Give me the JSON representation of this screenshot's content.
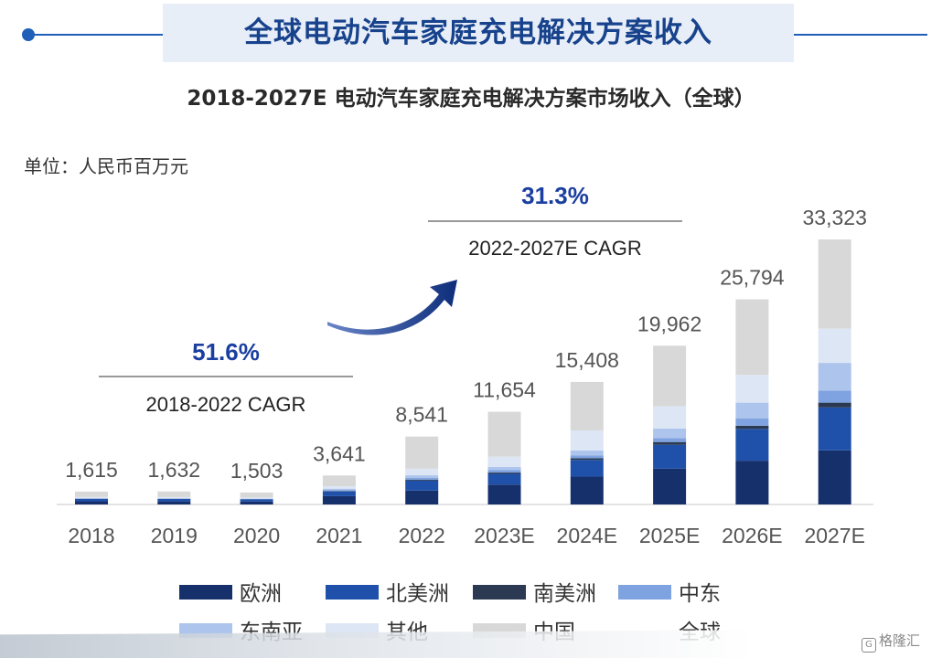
{
  "header": {
    "banner_title": "全球电动汽车家庭充电解决方案收入",
    "subtitle": "2018-2027E 电动汽车家庭充电解决方案市场收入（全球）",
    "unit": "单位：人民币百万元",
    "watermark": "格隆汇",
    "watermark_icon": "G"
  },
  "colors": {
    "banner": "#1f5fb8",
    "cagr_value": "#1a3fa0"
  },
  "annotations": {
    "cagr1": {
      "value": "51.6%",
      "label": "2018-2022 CAGR"
    },
    "cagr2": {
      "value": "31.3%",
      "label": "2022-2027E CAGR"
    }
  },
  "chart_data": {
    "type": "bar",
    "stacked": true,
    "categories": [
      "2018",
      "2019",
      "2020",
      "2021",
      "2022",
      "2023E",
      "2024E",
      "2025E",
      "2026E",
      "2027E"
    ],
    "total_labels": [
      "1,615",
      "1,632",
      "1,503",
      "3,641",
      "8,541",
      "11,654",
      "15,408",
      "19,962",
      "25,794",
      "33,323"
    ],
    "totals": [
      1615,
      1632,
      1503,
      3641,
      8541,
      11654,
      15408,
      19962,
      25794,
      33323
    ],
    "series": [
      {
        "name": "欧洲",
        "color": "#15306b",
        "values": [
          400,
          390,
          360,
          1050,
          1750,
          2500,
          3500,
          4500,
          5500,
          6800
        ]
      },
      {
        "name": "北美洲",
        "color": "#1f51aa",
        "values": [
          300,
          300,
          290,
          600,
          1250,
          1350,
          2100,
          3000,
          4000,
          5400
        ]
      },
      {
        "name": "南美洲",
        "color": "#2b3a52",
        "values": [
          20,
          20,
          20,
          50,
          120,
          160,
          200,
          350,
          400,
          600
        ]
      },
      {
        "name": "中东",
        "color": "#7fa3e0",
        "values": [
          30,
          30,
          30,
          120,
          250,
          300,
          350,
          500,
          900,
          1500
        ]
      },
      {
        "name": "东南亚",
        "color": "#adc4ec",
        "values": [
          40,
          40,
          40,
          170,
          300,
          400,
          650,
          1200,
          2000,
          3500
        ]
      },
      {
        "name": "其他",
        "color": "#dde6f5",
        "values": [
          150,
          150,
          140,
          300,
          830,
          1300,
          2500,
          2800,
          3500,
          4300
        ]
      },
      {
        "name": "中国",
        "color": "#d8d8d8",
        "values": [
          675,
          702,
          623,
          1351,
          4041,
          5644,
          6108,
          7612,
          9494,
          11223
        ]
      }
    ],
    "legend": [
      {
        "name": "欧洲",
        "color": "#15306b"
      },
      {
        "name": "北美洲",
        "color": "#1f51aa"
      },
      {
        "name": "南美洲",
        "color": "#2b3a52"
      },
      {
        "name": "中东",
        "color": "#7fa3e0"
      },
      {
        "name": "东南亚",
        "color": "#adc4ec"
      },
      {
        "name": "其他",
        "color": "#dde6f5"
      },
      {
        "name": "中国",
        "color": "#d8d8d8"
      },
      {
        "name": "全球",
        "color": ""
      }
    ],
    "legend_position": "bottom",
    "grid": false
  }
}
